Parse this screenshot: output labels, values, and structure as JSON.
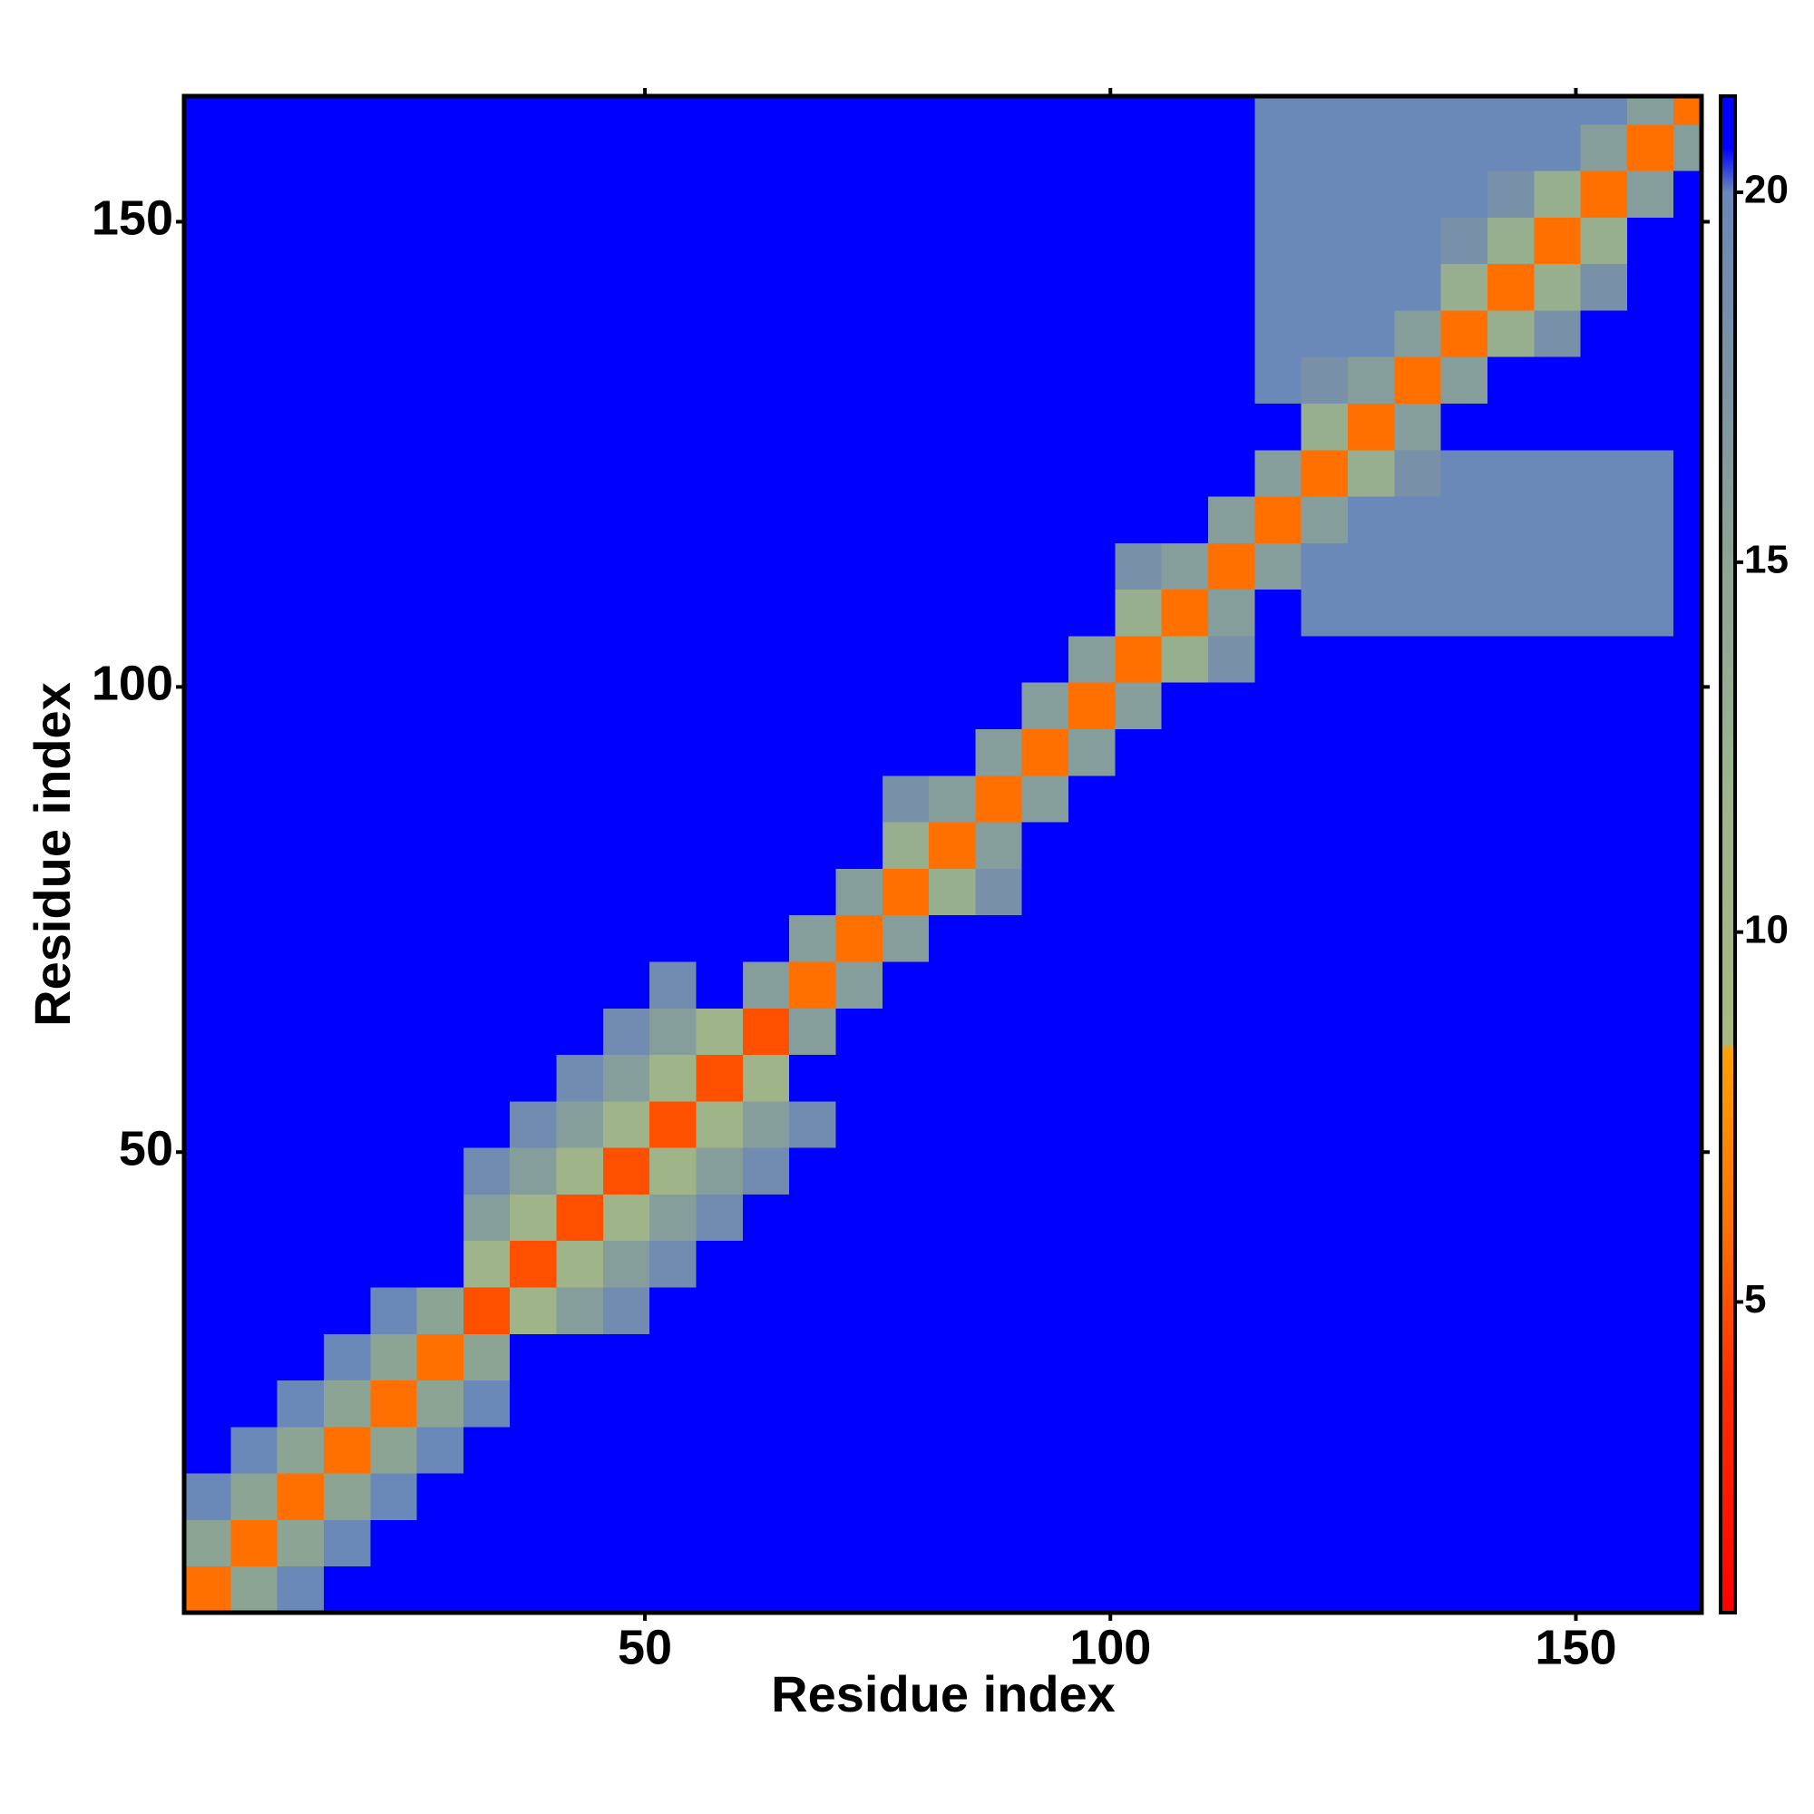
{
  "chart_data": {
    "type": "heatmap",
    "xlabel": "Residue index",
    "ylabel": "Residue index",
    "xlim": [
      0.5,
      163.5
    ],
    "ylim": [
      0.5,
      163.5
    ],
    "xticks": [
      50,
      100,
      150
    ],
    "yticks": [
      50,
      100,
      150
    ],
    "xbins": [
      0.5,
      5.5,
      10.5,
      15.5,
      20.5,
      25.5,
      30.5,
      35.5,
      40.5,
      45.5,
      50.5,
      55.5,
      60.5,
      65.5,
      70.5,
      75.5,
      80.5,
      85.5,
      90.5,
      95.5,
      100.5,
      105.5,
      110.5,
      115.5,
      120.5,
      125.5,
      130.5,
      135.5,
      140.5,
      145.5,
      150.5,
      155.5,
      160.5,
      163.5
    ],
    "ybins": [
      0.5,
      5.5,
      10.5,
      15.5,
      20.5,
      25.5,
      30.5,
      35.5,
      40.5,
      45.5,
      50.5,
      55.5,
      60.5,
      65.5,
      70.5,
      75.5,
      80.5,
      85.5,
      90.5,
      95.5,
      100.5,
      105.5,
      110.5,
      115.5,
      120.5,
      125.5,
      130.5,
      135.5,
      140.5,
      145.5,
      150.5,
      155.5,
      160.5,
      163.5
    ],
    "values": [
      [
        6,
        15,
        20,
        21,
        21,
        21,
        21,
        21,
        21,
        21,
        21,
        21,
        21,
        21,
        21,
        21,
        21,
        21,
        21,
        21,
        21,
        21,
        21,
        21,
        21,
        21,
        21,
        21,
        21,
        21,
        21,
        21,
        21
      ],
      [
        15,
        6,
        15,
        20,
        21,
        21,
        21,
        21,
        21,
        21,
        21,
        21,
        21,
        21,
        21,
        21,
        21,
        21,
        21,
        21,
        21,
        21,
        21,
        21,
        21,
        21,
        21,
        21,
        21,
        21,
        21,
        21,
        21
      ],
      [
        20,
        15,
        6,
        15,
        20,
        21,
        21,
        21,
        21,
        21,
        21,
        21,
        21,
        21,
        21,
        21,
        21,
        21,
        21,
        21,
        21,
        21,
        21,
        21,
        21,
        21,
        21,
        21,
        21,
        21,
        21,
        21,
        21
      ],
      [
        21,
        20,
        15,
        6,
        15,
        20,
        21,
        21,
        21,
        21,
        21,
        21,
        21,
        21,
        21,
        21,
        21,
        21,
        21,
        21,
        21,
        21,
        21,
        21,
        21,
        21,
        21,
        21,
        21,
        21,
        21,
        21,
        21
      ],
      [
        21,
        21,
        20,
        15,
        6,
        15,
        20,
        21,
        21,
        21,
        21,
        21,
        21,
        21,
        21,
        21,
        21,
        21,
        21,
        21,
        21,
        21,
        21,
        21,
        21,
        21,
        21,
        21,
        21,
        21,
        21,
        21,
        21
      ],
      [
        21,
        21,
        21,
        20,
        15,
        6,
        15,
        21,
        21,
        21,
        21,
        21,
        21,
        21,
        21,
        21,
        21,
        21,
        21,
        21,
        21,
        21,
        21,
        21,
        21,
        21,
        21,
        21,
        21,
        21,
        21,
        21,
        21
      ],
      [
        21,
        21,
        21,
        21,
        20,
        15,
        5,
        11,
        16,
        19,
        21,
        21,
        21,
        21,
        21,
        21,
        21,
        21,
        21,
        21,
        21,
        21,
        21,
        21,
        21,
        21,
        21,
        21,
        21,
        21,
        21,
        21,
        21
      ],
      [
        21,
        21,
        21,
        21,
        21,
        21,
        11,
        5,
        11,
        16,
        19,
        21,
        21,
        21,
        21,
        21,
        21,
        21,
        21,
        21,
        21,
        21,
        21,
        21,
        21,
        21,
        21,
        21,
        21,
        21,
        21,
        21,
        21
      ],
      [
        21,
        21,
        21,
        21,
        21,
        21,
        16,
        11,
        5,
        11,
        16,
        19,
        21,
        21,
        21,
        21,
        21,
        21,
        21,
        21,
        21,
        21,
        21,
        21,
        21,
        21,
        21,
        21,
        21,
        21,
        21,
        21,
        21
      ],
      [
        21,
        21,
        21,
        21,
        21,
        21,
        19,
        16,
        11,
        5,
        11,
        16,
        19,
        21,
        21,
        21,
        21,
        21,
        21,
        21,
        21,
        21,
        21,
        21,
        21,
        21,
        21,
        21,
        21,
        21,
        21,
        21,
        21
      ],
      [
        21,
        21,
        21,
        21,
        21,
        21,
        21,
        19,
        16,
        11,
        5,
        11,
        16,
        19,
        21,
        21,
        21,
        21,
        21,
        21,
        21,
        21,
        21,
        21,
        21,
        21,
        21,
        21,
        21,
        21,
        21,
        21,
        21
      ],
      [
        21,
        21,
        21,
        21,
        21,
        21,
        21,
        21,
        19,
        16,
        11,
        5,
        11,
        21,
        21,
        21,
        21,
        21,
        21,
        21,
        21,
        21,
        21,
        21,
        21,
        21,
        21,
        21,
        21,
        21,
        21,
        21,
        21
      ],
      [
        21,
        21,
        21,
        21,
        21,
        21,
        21,
        21,
        21,
        19,
        16,
        11,
        5,
        16,
        21,
        21,
        21,
        21,
        21,
        21,
        21,
        21,
        21,
        21,
        21,
        21,
        21,
        21,
        21,
        21,
        21,
        21,
        21
      ],
      [
        21,
        21,
        21,
        21,
        21,
        21,
        21,
        21,
        21,
        21,
        19,
        21,
        16,
        6,
        16,
        21,
        21,
        21,
        21,
        21,
        21,
        21,
        21,
        21,
        21,
        21,
        21,
        21,
        21,
        21,
        21,
        21,
        21
      ],
      [
        21,
        21,
        21,
        21,
        21,
        21,
        21,
        21,
        21,
        21,
        21,
        21,
        21,
        16,
        6,
        16,
        21,
        21,
        21,
        21,
        21,
        21,
        21,
        21,
        21,
        21,
        21,
        21,
        21,
        21,
        21,
        21,
        21
      ],
      [
        21,
        21,
        21,
        21,
        21,
        21,
        21,
        21,
        21,
        21,
        21,
        21,
        21,
        21,
        16,
        6,
        13,
        18,
        21,
        21,
        21,
        21,
        21,
        21,
        21,
        21,
        21,
        21,
        21,
        21,
        21,
        21,
        21
      ],
      [
        21,
        21,
        21,
        21,
        21,
        21,
        21,
        21,
        21,
        21,
        21,
        21,
        21,
        21,
        21,
        13,
        6,
        16,
        21,
        21,
        21,
        21,
        21,
        21,
        21,
        21,
        21,
        21,
        21,
        21,
        21,
        21,
        21
      ],
      [
        21,
        21,
        21,
        21,
        21,
        21,
        21,
        21,
        21,
        21,
        21,
        21,
        21,
        21,
        21,
        18,
        16,
        6,
        16,
        21,
        21,
        21,
        21,
        21,
        21,
        21,
        21,
        21,
        21,
        21,
        21,
        21,
        21
      ],
      [
        21,
        21,
        21,
        21,
        21,
        21,
        21,
        21,
        21,
        21,
        21,
        21,
        21,
        21,
        21,
        21,
        21,
        16,
        6,
        16,
        21,
        21,
        21,
        21,
        21,
        21,
        21,
        21,
        21,
        21,
        21,
        21,
        21
      ],
      [
        21,
        21,
        21,
        21,
        21,
        21,
        21,
        21,
        21,
        21,
        21,
        21,
        21,
        21,
        21,
        21,
        21,
        21,
        16,
        6,
        16,
        21,
        21,
        21,
        21,
        21,
        21,
        21,
        21,
        21,
        21,
        21,
        21
      ],
      [
        21,
        21,
        21,
        21,
        21,
        21,
        21,
        21,
        21,
        21,
        21,
        21,
        21,
        21,
        21,
        21,
        21,
        21,
        21,
        16,
        6,
        13,
        18,
        21,
        21,
        21,
        21,
        21,
        21,
        21,
        21,
        21,
        21
      ],
      [
        21,
        21,
        21,
        21,
        21,
        21,
        21,
        21,
        21,
        21,
        21,
        21,
        21,
        21,
        21,
        21,
        21,
        21,
        21,
        21,
        13,
        6,
        16,
        21,
        20,
        20,
        20,
        20,
        20,
        20,
        20,
        20,
        21
      ],
      [
        21,
        21,
        21,
        21,
        21,
        21,
        21,
        21,
        21,
        21,
        21,
        21,
        21,
        21,
        21,
        21,
        21,
        21,
        21,
        21,
        18,
        16,
        6,
        16,
        20,
        20,
        20,
        20,
        20,
        20,
        20,
        20,
        21
      ],
      [
        21,
        21,
        21,
        21,
        21,
        21,
        21,
        21,
        21,
        21,
        21,
        21,
        21,
        21,
        21,
        21,
        21,
        21,
        21,
        21,
        21,
        21,
        16,
        6,
        16,
        20,
        20,
        20,
        20,
        20,
        20,
        20,
        21
      ],
      [
        21,
        21,
        21,
        21,
        21,
        21,
        21,
        21,
        21,
        21,
        21,
        21,
        21,
        21,
        21,
        21,
        21,
        21,
        21,
        21,
        21,
        21,
        21,
        16,
        6,
        13,
        18,
        20,
        20,
        20,
        20,
        20,
        21
      ],
      [
        21,
        21,
        21,
        21,
        21,
        21,
        21,
        21,
        21,
        21,
        21,
        21,
        21,
        21,
        21,
        21,
        21,
        21,
        21,
        21,
        21,
        21,
        21,
        21,
        13,
        6,
        16,
        21,
        21,
        21,
        21,
        21,
        21
      ],
      [
        21,
        21,
        21,
        21,
        21,
        21,
        21,
        21,
        21,
        21,
        21,
        21,
        21,
        21,
        21,
        21,
        21,
        21,
        21,
        21,
        21,
        21,
        21,
        20,
        18,
        16,
        6,
        16,
        21,
        21,
        21,
        21,
        21
      ],
      [
        21,
        21,
        21,
        21,
        21,
        21,
        21,
        21,
        21,
        21,
        21,
        21,
        21,
        21,
        21,
        21,
        21,
        21,
        21,
        21,
        21,
        21,
        21,
        20,
        20,
        20,
        16,
        6,
        13,
        18,
        21,
        21,
        21
      ],
      [
        21,
        21,
        21,
        21,
        21,
        21,
        21,
        21,
        21,
        21,
        21,
        21,
        21,
        21,
        21,
        21,
        21,
        21,
        21,
        21,
        21,
        21,
        21,
        20,
        20,
        20,
        20,
        13,
        6,
        13,
        18,
        21,
        21
      ],
      [
        21,
        21,
        21,
        21,
        21,
        21,
        21,
        21,
        21,
        21,
        21,
        21,
        21,
        21,
        21,
        21,
        21,
        21,
        21,
        21,
        21,
        21,
        21,
        20,
        20,
        20,
        20,
        18,
        13,
        6,
        13,
        21,
        21
      ],
      [
        21,
        21,
        21,
        21,
        21,
        21,
        21,
        21,
        21,
        21,
        21,
        21,
        21,
        21,
        21,
        21,
        21,
        21,
        21,
        21,
        21,
        21,
        21,
        20,
        20,
        20,
        20,
        20,
        18,
        13,
        6,
        16,
        21
      ],
      [
        21,
        21,
        21,
        21,
        21,
        21,
        21,
        21,
        21,
        21,
        21,
        21,
        21,
        21,
        21,
        21,
        21,
        21,
        21,
        21,
        21,
        21,
        21,
        20,
        20,
        20,
        20,
        20,
        20,
        20,
        16,
        6,
        16
      ],
      [
        21,
        21,
        21,
        21,
        21,
        21,
        21,
        21,
        21,
        21,
        21,
        21,
        21,
        21,
        21,
        21,
        21,
        21,
        21,
        21,
        21,
        21,
        21,
        20,
        20,
        20,
        20,
        20,
        20,
        20,
        20,
        16,
        6
      ]
    ],
    "clim": [
      0.8,
      21.3
    ],
    "cticks": [
      5,
      10,
      15,
      20
    ],
    "colorscale": [
      [
        0.8,
        "#ff0000"
      ],
      [
        4,
        "#ff3000"
      ],
      [
        6,
        "#ff7000"
      ],
      [
        8.4,
        "#ffa000"
      ],
      [
        8.5,
        "#a8b880"
      ],
      [
        12,
        "#9cb48c"
      ],
      [
        15,
        "#8ca494"
      ],
      [
        18,
        "#7890a8"
      ],
      [
        20,
        "#6a88b8"
      ],
      [
        20.6,
        "#0000ff"
      ],
      [
        21.3,
        "#0000ff"
      ]
    ]
  }
}
